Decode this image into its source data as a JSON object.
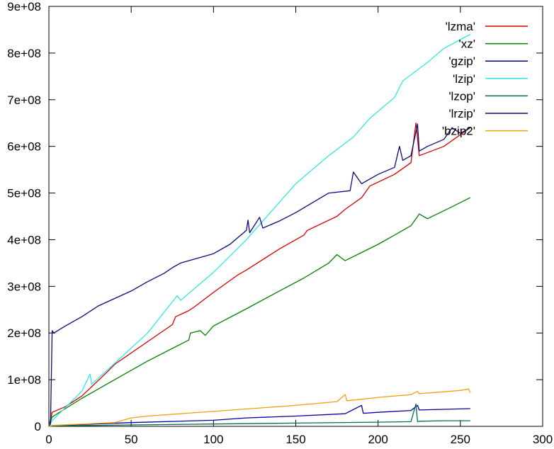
{
  "chart_data": {
    "type": "line",
    "title": "",
    "xlabel": "",
    "ylabel": "",
    "xlim": [
      0,
      300
    ],
    "ylim": [
      0,
      900000000
    ],
    "x_ticks": [
      "0",
      "50",
      "100",
      "150",
      "200",
      "250",
      "300"
    ],
    "y_ticks": [
      "0",
      "1e+08",
      "2e+08",
      "3e+08",
      "4e+08",
      "5e+08",
      "6e+08",
      "7e+08",
      "8e+08",
      "9e+08"
    ],
    "legend_position": "top-right",
    "series": [
      {
        "name": "'lzma'",
        "color": "#d40000",
        "x": [
          0,
          2,
          10,
          20,
          35,
          40,
          75,
          77,
          85,
          88,
          100,
          115,
          120,
          140,
          155,
          157,
          175,
          180,
          190,
          195,
          210,
          220,
          223,
          225,
          240,
          250,
          256
        ],
        "y": [
          0,
          30000000,
          42000000,
          65000000,
          115000000,
          133000000,
          218000000,
          235000000,
          248000000,
          255000000,
          287000000,
          325000000,
          335000000,
          380000000,
          410000000,
          420000000,
          450000000,
          465000000,
          490000000,
          515000000,
          540000000,
          565000000,
          650000000,
          580000000,
          600000000,
          625000000,
          640000000
        ]
      },
      {
        "name": "'xz'",
        "color": "#008000",
        "x": [
          0,
          2,
          10,
          20,
          40,
          60,
          85,
          86,
          92,
          95,
          100,
          120,
          140,
          155,
          170,
          175,
          180,
          200,
          210,
          220,
          225,
          230,
          240,
          256
        ],
        "y": [
          0,
          20000000,
          38000000,
          60000000,
          100000000,
          140000000,
          185000000,
          200000000,
          205000000,
          195000000,
          215000000,
          252000000,
          290000000,
          318000000,
          350000000,
          368000000,
          355000000,
          390000000,
          410000000,
          430000000,
          455000000,
          445000000,
          462000000,
          490000000
        ]
      },
      {
        "name": "'gzip'",
        "color": "#0000a0",
        "x": [
          0,
          5,
          50,
          100,
          120,
          150,
          180,
          190,
          191,
          200,
          220,
          224,
          225,
          256
        ],
        "y": [
          0,
          2000000,
          8000000,
          13000000,
          18000000,
          22000000,
          27000000,
          45000000,
          28000000,
          30000000,
          34000000,
          45000000,
          35000000,
          38000000
        ]
      },
      {
        "name": "'lzip'",
        "color": "#33e5e5",
        "x": [
          0,
          2,
          10,
          20,
          25,
          26,
          40,
          60,
          78,
          80,
          100,
          120,
          130,
          150,
          170,
          185,
          195,
          210,
          215,
          230,
          240,
          256
        ],
        "y": [
          0,
          12000000,
          40000000,
          75000000,
          112000000,
          90000000,
          135000000,
          200000000,
          280000000,
          270000000,
          330000000,
          400000000,
          440000000,
          520000000,
          580000000,
          620000000,
          660000000,
          705000000,
          740000000,
          780000000,
          810000000,
          840000000
        ]
      },
      {
        "name": "'lzop'",
        "color": "#00704a",
        "x": [
          0,
          5,
          50,
          100,
          150,
          200,
          220,
          223,
          224,
          225,
          240,
          256
        ],
        "y": [
          0,
          1000000,
          3000000,
          5000000,
          7000000,
          9000000,
          10000000,
          48000000,
          10000000,
          11000000,
          12000000,
          12000000
        ]
      },
      {
        "name": "'lrzip'",
        "color": "#0a0a7a",
        "x": [
          0,
          1,
          2,
          3,
          10,
          20,
          30,
          50,
          60,
          70,
          75,
          80,
          100,
          110,
          120,
          121,
          122,
          128,
          130,
          140,
          150,
          170,
          183,
          185,
          190,
          200,
          210,
          213,
          215,
          220,
          224,
          225,
          230,
          240,
          245,
          250,
          256
        ],
        "y": [
          0,
          5000000,
          205000000,
          200000000,
          215000000,
          235000000,
          258000000,
          290000000,
          310000000,
          328000000,
          340000000,
          350000000,
          370000000,
          390000000,
          420000000,
          442000000,
          415000000,
          448000000,
          425000000,
          440000000,
          458000000,
          500000000,
          505000000,
          545000000,
          520000000,
          540000000,
          555000000,
          600000000,
          570000000,
          580000000,
          648000000,
          590000000,
          600000000,
          615000000,
          640000000,
          628000000,
          640000000
        ]
      },
      {
        "name": "'bzip2'",
        "color": "#f0a010",
        "x": [
          0,
          2,
          40,
          50,
          60,
          100,
          150,
          175,
          180,
          181,
          190,
          200,
          220,
          224,
          225,
          240,
          250,
          255,
          256
        ],
        "y": [
          0,
          2000000,
          8000000,
          18000000,
          22000000,
          32000000,
          45000000,
          53000000,
          68000000,
          55000000,
          58000000,
          62000000,
          68000000,
          75000000,
          70000000,
          74000000,
          77000000,
          80000000,
          72000000
        ]
      }
    ]
  }
}
